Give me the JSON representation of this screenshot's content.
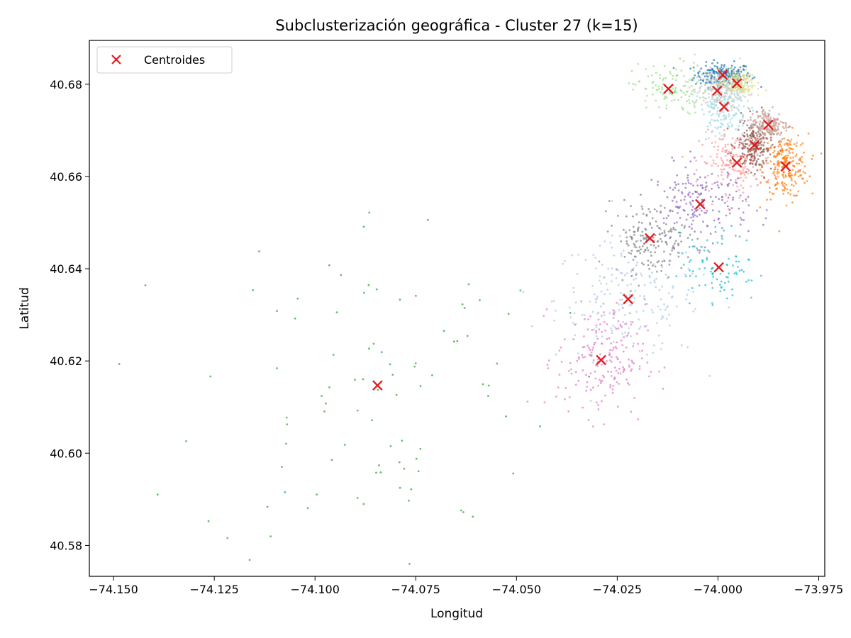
{
  "chart_data": {
    "type": "scatter",
    "title": "Subclusterización geográfica - Cluster 27 (k=15)",
    "xlabel": "Longitud",
    "ylabel": "Latitud",
    "xlim": [
      -74.156,
      -73.9735
    ],
    "ylim": [
      40.5733,
      40.6895
    ],
    "x_ticks": [
      -74.15,
      -74.125,
      -74.1,
      -74.075,
      -74.05,
      -74.025,
      -74.0,
      -73.975
    ],
    "x_tick_labels": [
      "−74.150",
      "−74.125",
      "−74.100",
      "−74.075",
      "−74.050",
      "−74.025",
      "−74.000",
      "−73.975"
    ],
    "y_ticks": [
      40.58,
      40.6,
      40.62,
      40.64,
      40.66,
      40.68
    ],
    "y_tick_labels": [
      "40.58",
      "40.60",
      "40.62",
      "40.64",
      "40.66",
      "40.68"
    ],
    "grid": false,
    "legend": {
      "position": "upper-left",
      "entries": [
        "Centroides"
      ]
    },
    "centroids": {
      "name": "Centroides",
      "color": "#e41a1c",
      "marker": "x",
      "points": [
        [
          -74.0845,
          40.6147
        ],
        [
          -74.029,
          40.6202
        ],
        [
          -74.0223,
          40.6334
        ],
        [
          -74.0169,
          40.6466
        ],
        [
          -74.0044,
          40.654
        ],
        [
          -73.9998,
          40.6403
        ],
        [
          -73.9953,
          40.663
        ],
        [
          -73.991,
          40.6668
        ],
        [
          -73.9875,
          40.6712
        ],
        [
          -73.9832,
          40.6622
        ],
        [
          -74.0123,
          40.679
        ],
        [
          -74.0002,
          40.6786
        ],
        [
          -73.9988,
          40.682
        ],
        [
          -73.9953,
          40.6802
        ],
        [
          -73.9985,
          40.6751
        ]
      ]
    },
    "clusters": [
      {
        "label": 0,
        "color": "#1f77b4",
        "center": [
          -73.9988,
          40.682
        ],
        "spread": [
          0.0035,
          0.0013
        ],
        "count": 200
      },
      {
        "label": 1,
        "color": "#aec7e8",
        "center": [
          -74.0223,
          40.6334
        ],
        "spread": [
          0.009,
          0.0065
        ],
        "count": 220
      },
      {
        "label": 2,
        "color": "#ff7f0e",
        "center": [
          -73.9832,
          40.6622
        ],
        "spread": [
          0.0028,
          0.0035
        ],
        "count": 230
      },
      {
        "label": 3,
        "color": "#2ca02c",
        "center": [
          -74.0845,
          40.6147
        ],
        "spread": [
          0.022,
          0.02
        ],
        "count": 95
      },
      {
        "label": 4,
        "color": "#98df8a",
        "center": [
          -74.0123,
          40.679
        ],
        "spread": [
          0.0045,
          0.0028
        ],
        "count": 120
      },
      {
        "label": 5,
        "color": "#ff9896",
        "center": [
          -73.9953,
          40.663
        ],
        "spread": [
          0.0045,
          0.0032
        ],
        "count": 200
      },
      {
        "label": 6,
        "color": "#9467bd",
        "center": [
          -74.0044,
          40.654
        ],
        "spread": [
          0.006,
          0.0042
        ],
        "count": 200
      },
      {
        "label": 7,
        "color": "#8c564b",
        "center": [
          -73.991,
          40.6668
        ],
        "spread": [
          0.0022,
          0.0028
        ],
        "count": 200
      },
      {
        "label": 8,
        "color": "#e377c2",
        "center": [
          -74.029,
          40.6202
        ],
        "spread": [
          0.0055,
          0.006
        ],
        "count": 200
      },
      {
        "label": 9,
        "color": "#c49c94",
        "center": [
          -73.9875,
          40.6712
        ],
        "spread": [
          0.0025,
          0.0018
        ],
        "count": 180
      },
      {
        "label": 10,
        "color": "#7f7f7f",
        "center": [
          -74.0169,
          40.6466
        ],
        "spread": [
          0.0045,
          0.0038
        ],
        "count": 170
      },
      {
        "label": 11,
        "color": "#c7c7c7",
        "center": [
          -74.0002,
          40.6786
        ],
        "spread": [
          0.0028,
          0.0022
        ],
        "count": 180
      },
      {
        "label": 12,
        "color": "#dbdb8d",
        "center": [
          -73.9953,
          40.6802
        ],
        "spread": [
          0.0022,
          0.0015
        ],
        "count": 160
      },
      {
        "label": 13,
        "color": "#17becf",
        "center": [
          -73.9998,
          40.6403
        ],
        "spread": [
          0.0048,
          0.004
        ],
        "count": 90
      },
      {
        "label": 14,
        "color": "#9edae5",
        "center": [
          -73.9985,
          40.6751
        ],
        "spread": [
          0.0028,
          0.0032
        ],
        "count": 160
      }
    ]
  }
}
